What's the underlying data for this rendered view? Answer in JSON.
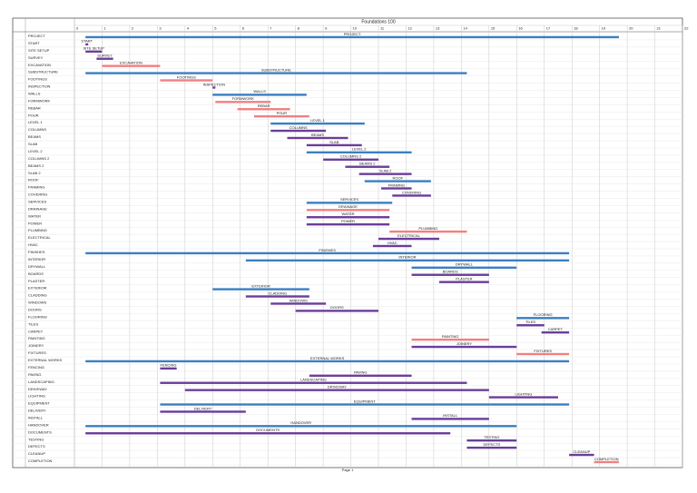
{
  "chart_data": {
    "type": "gantt",
    "title": "Foundations 100",
    "footer": "Page 1",
    "xlim": [
      0,
      22
    ],
    "xticks": [
      0,
      1,
      2,
      3,
      4,
      5,
      6,
      7,
      8,
      9,
      10,
      11,
      12,
      13,
      14,
      15,
      16,
      17,
      18,
      19,
      20,
      21,
      22
    ],
    "grid": true,
    "tasks": [
      {
        "name": "PROJECT",
        "start": 0.4,
        "end": 19.7,
        "color": "#3a7fc1"
      },
      {
        "name": "START",
        "start": 0.4,
        "end": 0.5,
        "color": "#6a3d9a"
      },
      {
        "name": "SITE SETUP",
        "start": 0.4,
        "end": 1.0,
        "color": "#6a3d9a"
      },
      {
        "name": "SURVEY",
        "start": 0.8,
        "end": 1.4,
        "color": "#6a3d9a"
      },
      {
        "name": "EXCAVATION",
        "start": 1.0,
        "end": 3.1,
        "color": "#f08080"
      },
      {
        "name": "SUBSTRUCTURE",
        "start": 0.4,
        "end": 14.2,
        "color": "#3a7fc1"
      },
      {
        "name": "FOOTINGS",
        "start": 3.1,
        "end": 5.0,
        "color": "#f08080"
      },
      {
        "name": "INSPECTION",
        "start": 5.0,
        "end": 5.1,
        "color": "#6a3d9a"
      },
      {
        "name": "WALLS",
        "start": 5.0,
        "end": 8.4,
        "color": "#3a7fc1"
      },
      {
        "name": "FORMWORK",
        "start": 5.1,
        "end": 7.1,
        "color": "#f08080"
      },
      {
        "name": "REBAR",
        "start": 5.9,
        "end": 7.8,
        "color": "#f08080"
      },
      {
        "name": "POUR",
        "start": 6.5,
        "end": 8.5,
        "color": "#f08080"
      },
      {
        "name": "LEVEL 1",
        "start": 7.1,
        "end": 10.5,
        "color": "#3a7fc1"
      },
      {
        "name": "COLUMNS",
        "start": 7.1,
        "end": 9.1,
        "color": "#6a3d9a"
      },
      {
        "name": "BEAMS",
        "start": 7.7,
        "end": 9.9,
        "color": "#6a3d9a"
      },
      {
        "name": "SLAB",
        "start": 8.4,
        "end": 10.4,
        "color": "#6a3d9a"
      },
      {
        "name": "LEVEL 2",
        "start": 8.4,
        "end": 12.2,
        "color": "#3a7fc1"
      },
      {
        "name": "COLUMNS 2",
        "start": 9.0,
        "end": 11.0,
        "color": "#6a3d9a"
      },
      {
        "name": "BEAMS 2",
        "start": 9.8,
        "end": 11.4,
        "color": "#6a3d9a"
      },
      {
        "name": "SLAB 2",
        "start": 10.3,
        "end": 12.2,
        "color": "#6a3d9a"
      },
      {
        "name": "ROOF",
        "start": 10.5,
        "end": 12.9,
        "color": "#3a7fc1"
      },
      {
        "name": "FRAMING",
        "start": 11.1,
        "end": 12.2,
        "color": "#6a3d9a"
      },
      {
        "name": "COVERING",
        "start": 11.5,
        "end": 12.9,
        "color": "#6a3d9a"
      },
      {
        "name": "SERVICES",
        "start": 8.4,
        "end": 11.5,
        "color": "#3a7fc1"
      },
      {
        "name": "DRAINAGE",
        "start": 8.4,
        "end": 11.4,
        "color": "#f08080"
      },
      {
        "name": "WATER",
        "start": 8.4,
        "end": 11.4,
        "color": "#6a3d9a"
      },
      {
        "name": "POWER",
        "start": 8.4,
        "end": 11.4,
        "color": "#6a3d9a"
      },
      {
        "name": "PLUMBING",
        "start": 11.4,
        "end": 14.2,
        "color": "#f08080"
      },
      {
        "name": "ELECTRICAL",
        "start": 11.0,
        "end": 13.2,
        "color": "#6a3d9a"
      },
      {
        "name": "HVAC",
        "start": 10.8,
        "end": 12.2,
        "color": "#6a3d9a"
      },
      {
        "name": "FINISHES",
        "start": 0.4,
        "end": 17.9,
        "color": "#3a7fc1"
      },
      {
        "name": "INTERIOR",
        "start": 6.2,
        "end": 17.9,
        "color": "#3a7fc1"
      },
      {
        "name": "DRYWALL",
        "start": 12.2,
        "end": 16.0,
        "color": "#3a7fc1"
      },
      {
        "name": "BOARDS",
        "start": 12.2,
        "end": 15.0,
        "color": "#6a3d9a"
      },
      {
        "name": "PLASTER",
        "start": 13.2,
        "end": 15.0,
        "color": "#6a3d9a"
      },
      {
        "name": "EXTERIOR",
        "start": 5.0,
        "end": 8.5,
        "color": "#3a7fc1"
      },
      {
        "name": "CLADDING",
        "start": 6.2,
        "end": 8.5,
        "color": "#6a3d9a"
      },
      {
        "name": "WINDOWS",
        "start": 7.1,
        "end": 9.1,
        "color": "#6a3d9a"
      },
      {
        "name": "DOORS",
        "start": 8.0,
        "end": 11.0,
        "color": "#6a3d9a"
      },
      {
        "name": "FLOORING",
        "start": 16.0,
        "end": 17.9,
        "color": "#3a7fc1"
      },
      {
        "name": "TILES",
        "start": 16.0,
        "end": 17.0,
        "color": "#6a3d9a"
      },
      {
        "name": "CARPET",
        "start": 16.9,
        "end": 17.9,
        "color": "#6a3d9a"
      },
      {
        "name": "PAINTING",
        "start": 12.2,
        "end": 15.0,
        "color": "#f08080"
      },
      {
        "name": "JOINERY",
        "start": 12.2,
        "end": 16.0,
        "color": "#6a3d9a"
      },
      {
        "name": "FIXTURES",
        "start": 16.0,
        "end": 17.9,
        "color": "#f08080"
      },
      {
        "name": "EXTERNAL WORKS",
        "start": 0.4,
        "end": 17.9,
        "color": "#3a7fc1"
      },
      {
        "name": "FENCING",
        "start": 3.1,
        "end": 3.7,
        "color": "#6a3d9a"
      },
      {
        "name": "PAVING",
        "start": 8.5,
        "end": 12.2,
        "color": "#6a3d9a"
      },
      {
        "name": "LANDSCAPING",
        "start": 3.1,
        "end": 14.2,
        "color": "#6a3d9a"
      },
      {
        "name": "DRIVEWAY",
        "start": 4.0,
        "end": 15.0,
        "color": "#6a3d9a"
      },
      {
        "name": "LIGHTING",
        "start": 15.0,
        "end": 17.5,
        "color": "#6a3d9a"
      },
      {
        "name": "EQUIPMENT",
        "start": 3.1,
        "end": 17.9,
        "color": "#3a7fc1"
      },
      {
        "name": "DELIVERY",
        "start": 3.1,
        "end": 6.2,
        "color": "#6a3d9a"
      },
      {
        "name": "INSTALL",
        "start": 12.2,
        "end": 15.0,
        "color": "#6a3d9a"
      },
      {
        "name": "HANDOVER",
        "start": 0.4,
        "end": 16.0,
        "color": "#3a7fc1"
      },
      {
        "name": "DOCUMENTS",
        "start": 0.4,
        "end": 13.6,
        "color": "#6a3d9a"
      },
      {
        "name": "TESTING",
        "start": 14.2,
        "end": 16.0,
        "color": "#6a3d9a"
      },
      {
        "name": "DEFECTS",
        "start": 14.2,
        "end": 16.0,
        "color": "#6a3d9a"
      },
      {
        "name": "CLEANUP",
        "start": 17.9,
        "end": 18.8,
        "color": "#6a3d9a"
      },
      {
        "name": "COMPLETION",
        "start": 18.8,
        "end": 19.7,
        "color": "#f08080"
      }
    ]
  }
}
